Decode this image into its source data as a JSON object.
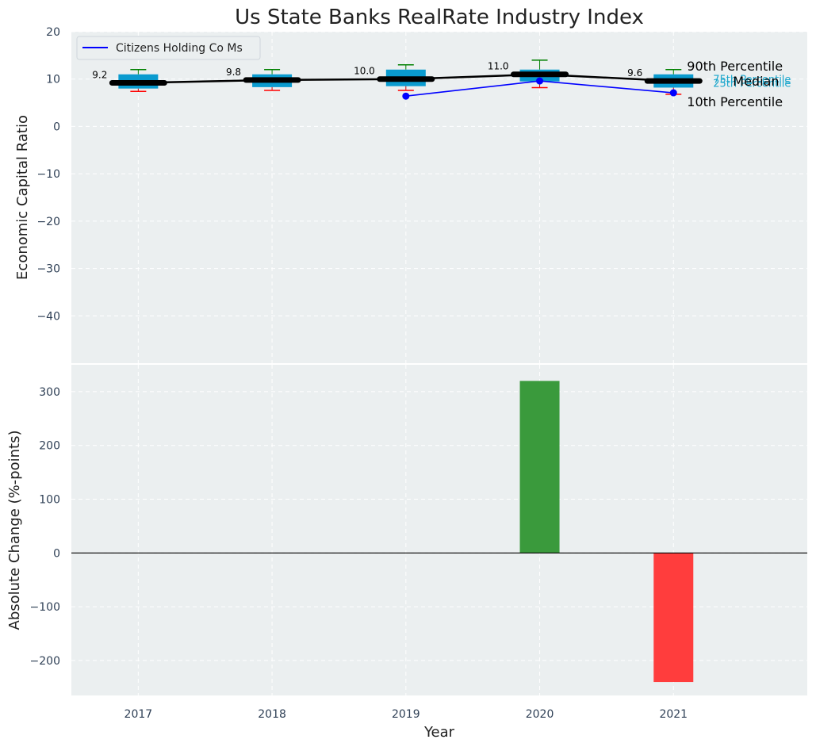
{
  "chart_data": [
    {
      "type": "box",
      "title": "Us State Banks RealRate Industry Index",
      "ylabel": "Economic Capital Ratio",
      "ylim": [
        -50,
        20
      ],
      "yticks": [
        20,
        10,
        0,
        -10,
        -20,
        -30,
        -40
      ],
      "categories": [
        "2017",
        "2018",
        "2019",
        "2020",
        "2021"
      ],
      "p10": [
        7.4,
        7.6,
        7.6,
        8.2,
        6.8
      ],
      "q1": [
        8.0,
        8.3,
        8.5,
        9.5,
        8.2
      ],
      "median": [
        9.2,
        9.8,
        10.0,
        11.0,
        9.6
      ],
      "median_labels": [
        "9.2",
        "9.8",
        "10.0",
        "11.0",
        "9.6"
      ],
      "q3": [
        11.0,
        11.0,
        12.0,
        12.0,
        11.0
      ],
      "p90": [
        12.0,
        12.0,
        13.0,
        14.0,
        12.0
      ],
      "company": {
        "name": "Citizens Holding Co Ms",
        "x": [
          "2019",
          "2020",
          "2021"
        ],
        "values": [
          6.4,
          9.6,
          7.1
        ]
      },
      "annotations": {
        "p90": "90th Percentile",
        "q3": "75th Percentile",
        "median": "Median",
        "q1": "25th Percentile",
        "p10": "10th Percentile"
      },
      "legend_position": "top-left",
      "colors": {
        "box": "#0a9bcf",
        "median": "#000000",
        "company": "#0000ff",
        "p90": "#008000",
        "p10": "#ff0000",
        "background": "#ebeff0"
      }
    },
    {
      "type": "bar",
      "ylabel": "Absolute Change (%-points)",
      "xlabel": "Year",
      "ylim": [
        -265,
        350
      ],
      "yticks": [
        300,
        200,
        100,
        0,
        -100,
        -200
      ],
      "categories": [
        "2017",
        "2018",
        "2019",
        "2020",
        "2021"
      ],
      "values": [
        0,
        0,
        0,
        320,
        -240
      ],
      "colors": {
        "positive": "#3a9a3c",
        "negative": "#ff3d3d"
      }
    }
  ]
}
